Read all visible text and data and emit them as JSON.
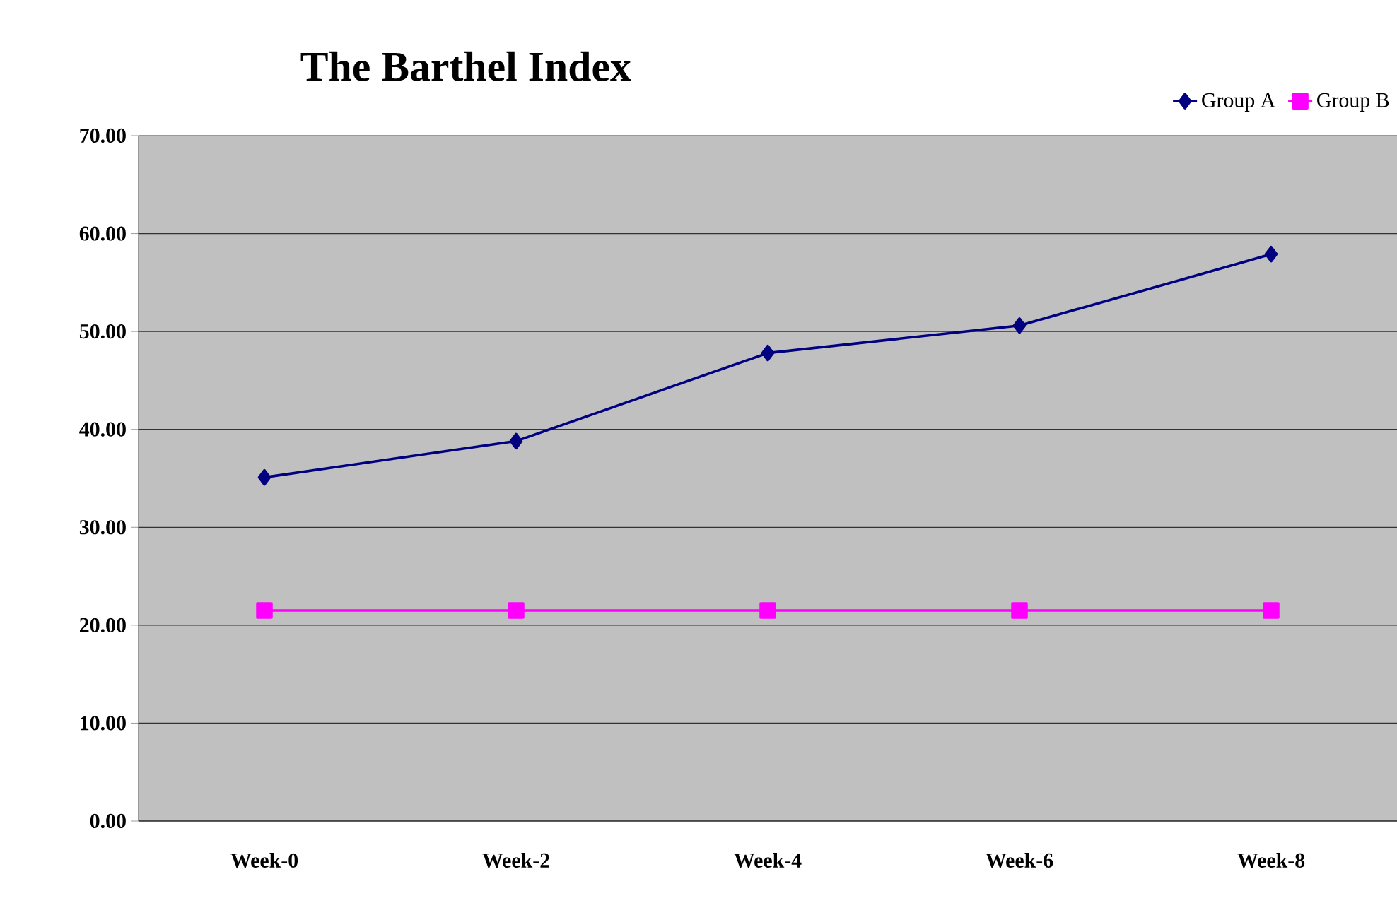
{
  "chart_data": {
    "type": "line",
    "title": "The Barthel Index",
    "categories": [
      "Week-0",
      "Week-2",
      "Week-4",
      "Week-6",
      "Week-8"
    ],
    "series": [
      {
        "name": "Group A",
        "color": "#000080",
        "marker": "diamond",
        "values": [
          35.1,
          38.8,
          47.8,
          50.6,
          57.9
        ]
      },
      {
        "name": "Group B",
        "color": "#ff00ff",
        "marker": "square",
        "values": [
          21.5,
          21.5,
          21.5,
          21.5,
          21.5
        ]
      }
    ],
    "ylim": [
      0,
      70
    ],
    "yticks": [
      {
        "value": 0,
        "label": "0.00"
      },
      {
        "value": 10,
        "label": "10.00"
      },
      {
        "value": 20,
        "label": "20.00"
      },
      {
        "value": 30,
        "label": "30.00"
      },
      {
        "value": 40,
        "label": "40.00"
      },
      {
        "value": 50,
        "label": "50.00"
      },
      {
        "value": 60,
        "label": "60.00"
      },
      {
        "value": 70,
        "label": "70.00"
      }
    ],
    "grid": "y",
    "legend": "top right",
    "line_style": "solid"
  }
}
